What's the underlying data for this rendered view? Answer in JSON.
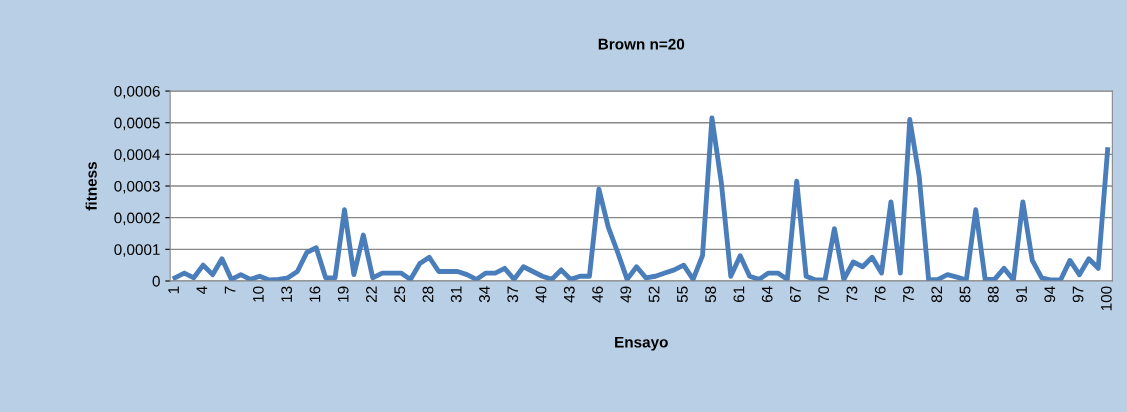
{
  "chart_data": {
    "type": "line",
    "title": "Brown n=20",
    "xlabel": "Ensayo",
    "ylabel": "fitness",
    "categories": [
      "1",
      null,
      null,
      "4",
      null,
      null,
      "7",
      null,
      null,
      "10",
      null,
      null,
      "13",
      null,
      null,
      "16",
      null,
      null,
      "19",
      null,
      null,
      "22",
      null,
      null,
      "25",
      null,
      null,
      "28",
      null,
      null,
      "31",
      null,
      null,
      "34",
      null,
      null,
      "37",
      null,
      null,
      "40",
      null,
      null,
      "43",
      null,
      null,
      "46",
      null,
      null,
      "49",
      null,
      null,
      "52",
      null,
      null,
      "55",
      null,
      null,
      "58",
      null,
      null,
      "61",
      null,
      null,
      "64",
      null,
      null,
      "67",
      null,
      null,
      "70",
      null,
      null,
      "73",
      null,
      null,
      "76",
      null,
      null,
      "79",
      null,
      null,
      "82",
      null,
      null,
      "85",
      null,
      null,
      "88",
      null,
      null,
      "91",
      null,
      null,
      "94",
      null,
      null,
      "97",
      null,
      null,
      "100"
    ],
    "series": [
      {
        "color": "#4a7ebb",
        "values": [
          1e-05,
          2.5e-05,
          1e-05,
          5e-05,
          2e-05,
          7e-05,
          5e-06,
          2e-05,
          5e-06,
          1.5e-05,
          3e-06,
          5e-06,
          1e-05,
          3e-05,
          9e-05,
          0.000105,
          1e-05,
          1e-05,
          0.000225,
          2e-05,
          0.000145,
          1e-05,
          2.5e-05,
          2.5e-05,
          2.5e-05,
          5e-06,
          5.5e-05,
          7.5e-05,
          3e-05,
          3e-05,
          3e-05,
          2e-05,
          5e-06,
          2.5e-05,
          2.5e-05,
          4e-05,
          5e-06,
          4.5e-05,
          3e-05,
          1.5e-05,
          5e-06,
          3.5e-05,
          5e-06,
          1.5e-05,
          1.5e-05,
          0.00029,
          0.00017,
          9e-05,
          5e-06,
          4.5e-05,
          1e-05,
          1.5e-05,
          2.5e-05,
          3.5e-05,
          5e-05,
          5e-06,
          8e-05,
          0.000515,
          0.00031,
          1.5e-05,
          8e-05,
          1.5e-05,
          5e-06,
          2.5e-05,
          2.5e-05,
          5e-06,
          0.000315,
          1.5e-05,
          3e-06,
          3e-06,
          0.000165,
          5e-06,
          6e-05,
          4.5e-05,
          7.5e-05,
          2.5e-05,
          0.00025,
          2.5e-05,
          0.00051,
          0.00033,
          3e-06,
          5e-06,
          2e-05,
          1.2e-05,
          3e-06,
          0.000225,
          5e-06,
          5e-06,
          4e-05,
          3e-06,
          0.00025,
          6.5e-05,
          1e-05,
          3e-06,
          3e-06,
          6.5e-05,
          2e-05,
          7e-05,
          4e-05,
          0.000415
        ]
      }
    ],
    "ylim": [
      0,
      0.0006
    ],
    "yticks": [
      0,
      {
        "value": 0.0001,
        "label": "0,0001"
      },
      {
        "value": 0.0002,
        "label": "0,0002"
      },
      {
        "value": 0.0003,
        "label": "0,0003"
      },
      {
        "value": 0.0004,
        "label": "0,0004"
      },
      {
        "value": 0.0005,
        "label": "0,0005"
      },
      {
        "value": 0.0006,
        "label": "0,0006"
      }
    ],
    "grid": "y",
    "legend": false,
    "marker": "none",
    "line_style": "solid"
  }
}
